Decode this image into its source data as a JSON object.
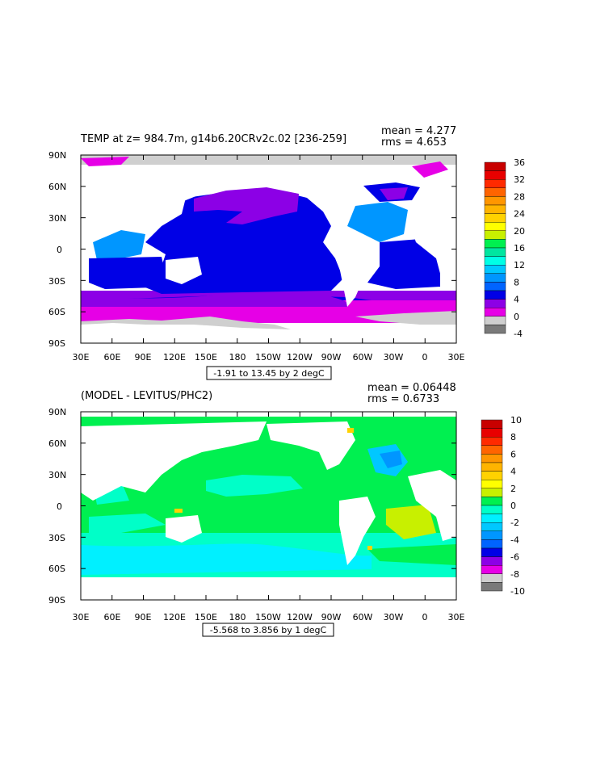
{
  "panels": [
    {
      "title": "TEMP at z= 984.7m, g14b6.20CRv2c.02 [236-259]",
      "mean_label": "mean = 4.277",
      "rms_label": "rms = 4.653",
      "range_label": "-1.91 to 13.45 by 2 degC",
      "lat_labels": [
        "90N",
        "60N",
        "30N",
        "0",
        "30S",
        "60S",
        "90S"
      ],
      "lon_labels": [
        "30E",
        "60E",
        "90E",
        "120E",
        "150E",
        "180",
        "150W",
        "120W",
        "90W",
        "60W",
        "30W",
        "0",
        "30E"
      ],
      "colorbar": {
        "labels": [
          "36",
          "32",
          "28",
          "24",
          "20",
          "16",
          "12",
          "8",
          "4",
          "0",
          "-4"
        ],
        "colors": [
          "#c80000",
          "#e80000",
          "#ff2a00",
          "#ff6400",
          "#ff9600",
          "#ffb400",
          "#ffd200",
          "#ffff00",
          "#c8f000",
          "#00f050",
          "#00e6a0",
          "#00ffe6",
          "#00c8ff",
          "#0096ff",
          "#0064ff",
          "#0000e6",
          "#8c00e6",
          "#e600e6",
          "#cfcfcf",
          "#7a7a7a"
        ]
      }
    },
    {
      "title": "(MODEL - LEVITUS/PHC2)",
      "mean_label": "mean = 0.06448",
      "rms_label": "rms = 0.6733",
      "range_label": "-5.568 to 3.856 by 1 degC",
      "lat_labels": [
        "90N",
        "60N",
        "30N",
        "0",
        "30S",
        "60S",
        "90S"
      ],
      "lon_labels": [
        "30E",
        "60E",
        "90E",
        "120E",
        "150E",
        "180",
        "150W",
        "120W",
        "90W",
        "60W",
        "30W",
        "0",
        "30E"
      ],
      "colorbar": {
        "labels": [
          "10",
          "8",
          "6",
          "4",
          "2",
          "0",
          "-2",
          "-4",
          "-6",
          "-8",
          "-10"
        ],
        "colors": [
          "#c80000",
          "#e80000",
          "#ff2a00",
          "#ff6400",
          "#ff9600",
          "#ffb400",
          "#ffd200",
          "#ffff00",
          "#c8f000",
          "#00f050",
          "#00ffc8",
          "#00f0ff",
          "#00c8ff",
          "#0096ff",
          "#0064ff",
          "#0000e6",
          "#8c00e6",
          "#e600e6",
          "#cfcfcf",
          "#7a7a7a"
        ]
      }
    }
  ]
}
